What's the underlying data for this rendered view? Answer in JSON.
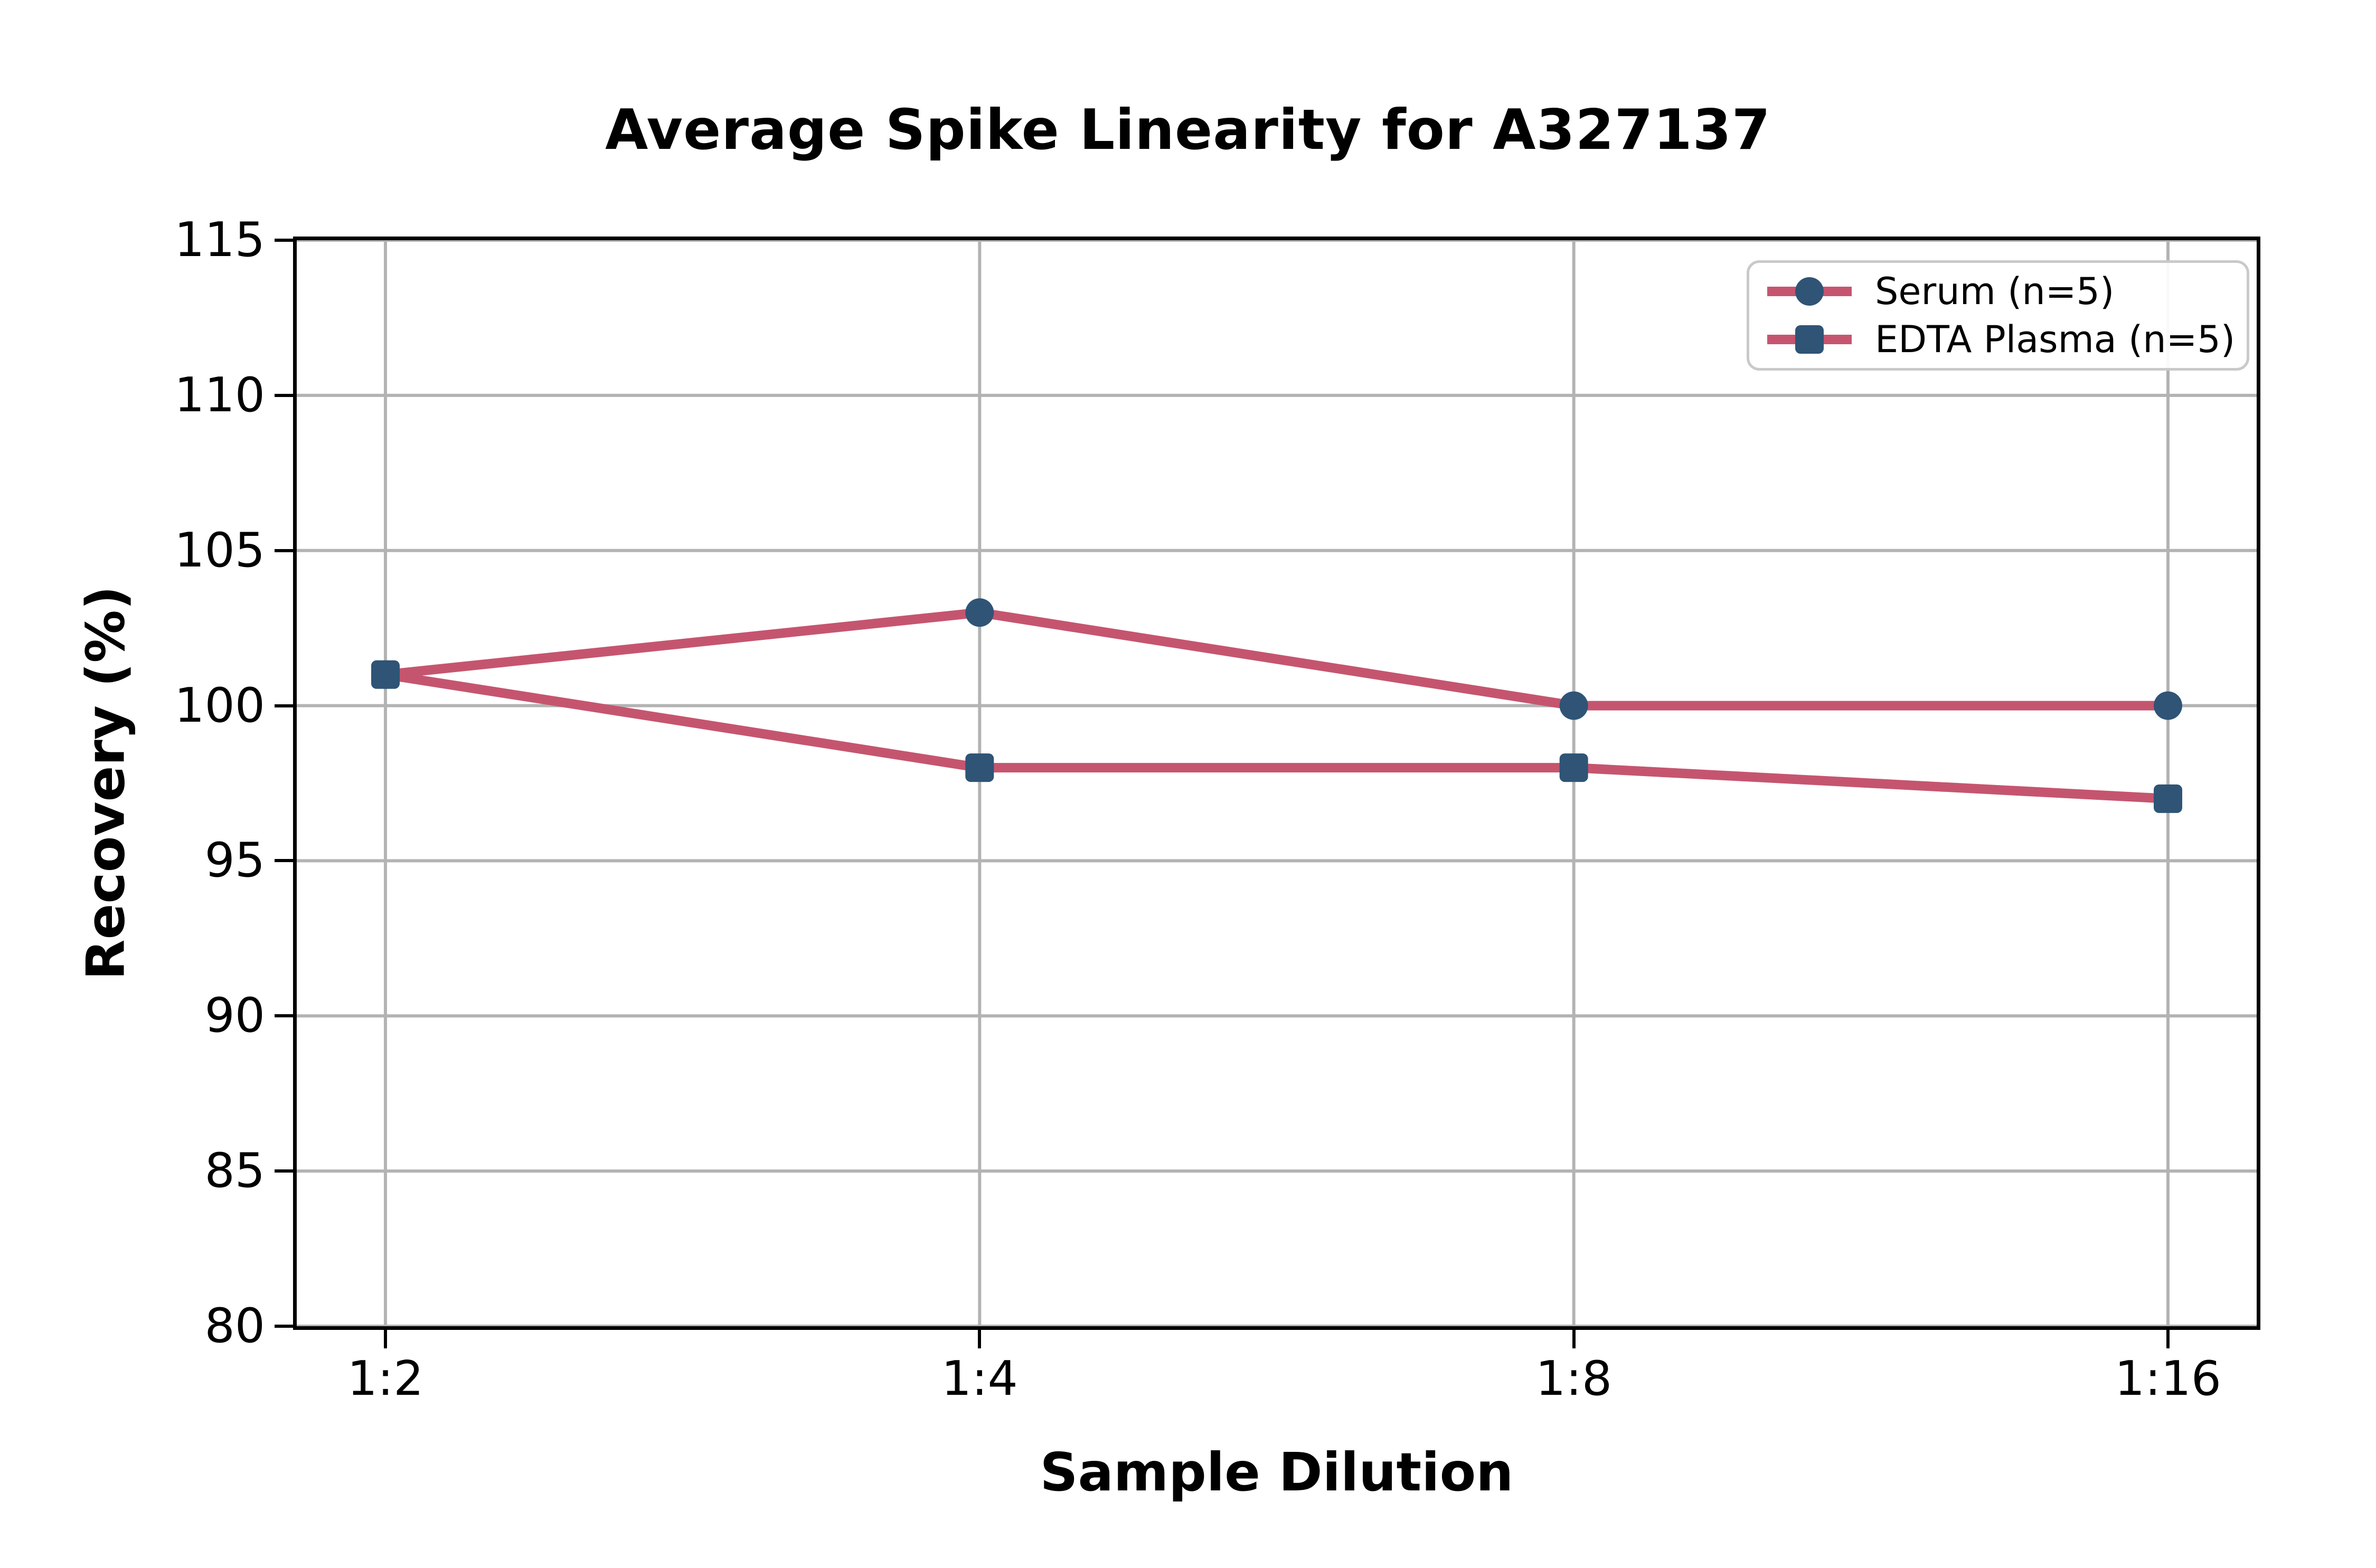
{
  "chart_data": {
    "type": "line",
    "title": "Average Spike Linearity for A327137",
    "xlabel": "Sample Dilution",
    "ylabel": "Recovery (%)",
    "categories": [
      "1:2",
      "1:4",
      "1:8",
      "1:16"
    ],
    "series": [
      {
        "name": "Serum (n=5)",
        "marker": "circle",
        "values": [
          101,
          103,
          100,
          100
        ]
      },
      {
        "name": "EDTA Plasma (n=5)",
        "marker": "square",
        "values": [
          101,
          98,
          98,
          97
        ]
      }
    ],
    "ylim": [
      80,
      115
    ],
    "yticks": [
      80,
      85,
      90,
      95,
      100,
      105,
      110,
      115
    ],
    "grid": true,
    "legend_position": "upper right",
    "colors": {
      "line": "#C5556F",
      "marker": "#2F5476",
      "grid": "#B3B3B3",
      "spine": "#000000",
      "legend_border": "#C9C9C9",
      "background": "#FFFFFF",
      "text": "#000000"
    }
  }
}
